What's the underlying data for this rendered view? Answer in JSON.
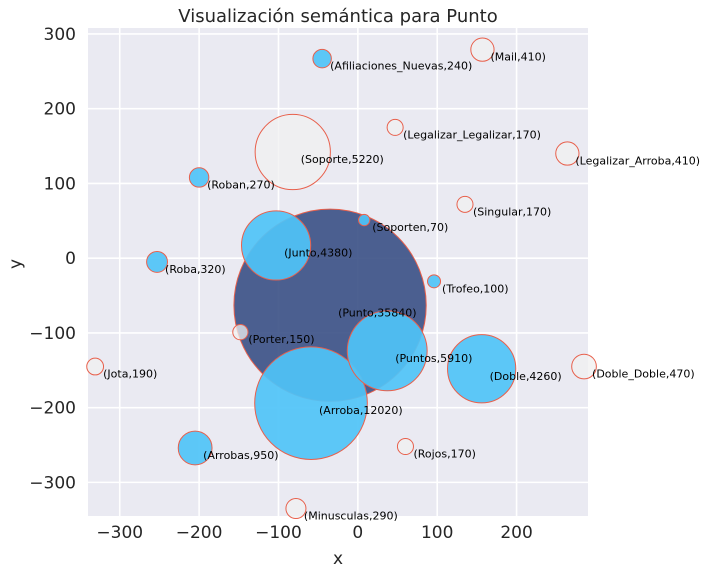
{
  "chart_data": {
    "type": "scatter",
    "title": "Visualización semántica para Punto",
    "xlabel": "x",
    "ylabel": "y",
    "xlim": [
      -340,
      290
    ],
    "ylim": [
      -345,
      308
    ],
    "xticks": [
      -300,
      -200,
      -100,
      0,
      100,
      200
    ],
    "yticks": [
      -300,
      -200,
      -100,
      0,
      100,
      200,
      300
    ],
    "grid": true,
    "colors": {
      "background": "#EAEAF2",
      "grid": "#FFFFFF",
      "edge": "#E8604C",
      "fill_blue": "#4FC3F7",
      "fill_light": "#F0F0F0",
      "fill_main": "#3A5085"
    },
    "points": [
      {
        "label": "(Punto,35840)",
        "word": "Punto",
        "x": -35,
        "y": -63,
        "weight": 35840,
        "style": "main"
      },
      {
        "label": "(Arroba,12020)",
        "word": "Arroba",
        "x": -59,
        "y": -194,
        "weight": 12020,
        "style": "blue"
      },
      {
        "label": "(Puntos,5910)",
        "word": "Puntos",
        "x": 37,
        "y": -124,
        "weight": 5910,
        "style": "blue"
      },
      {
        "label": "(Soporte,5220)",
        "word": "Soporte",
        "x": -82,
        "y": 142,
        "weight": 5220,
        "style": "light"
      },
      {
        "label": "(Junto,4380)",
        "word": "Junto",
        "x": -103,
        "y": 17,
        "weight": 4380,
        "style": "blue"
      },
      {
        "label": "(Doble,4260)",
        "word": "Doble",
        "x": 156,
        "y": -148,
        "weight": 4260,
        "style": "blue"
      },
      {
        "label": "(Arrobas,950)",
        "word": "Arrobas",
        "x": -205,
        "y": -254,
        "weight": 950,
        "style": "blue"
      },
      {
        "label": "(Doble_Doble,470)",
        "word": "Doble_Doble",
        "x": 285,
        "y": -145,
        "weight": 470,
        "style": "light"
      },
      {
        "label": "(Mail,410)",
        "word": "Mail",
        "x": 157,
        "y": 279,
        "weight": 410,
        "style": "light"
      },
      {
        "label": "(Legalizar_Arroba,410)",
        "word": "Legalizar_Arroba",
        "x": 264,
        "y": 140,
        "weight": 410,
        "style": "light"
      },
      {
        "label": "(Roba,320)",
        "word": "Roba",
        "x": -253,
        "y": -5,
        "weight": 320,
        "style": "blue"
      },
      {
        "label": "(Minusculas,290)",
        "word": "Minusculas",
        "x": -78,
        "y": -335,
        "weight": 290,
        "style": "light"
      },
      {
        "label": "(Roban,270)",
        "word": "Roban",
        "x": -200,
        "y": 108,
        "weight": 270,
        "style": "blue"
      },
      {
        "label": "(Afiliaciones_Nuevas,240)",
        "word": "Afiliaciones_Nuevas",
        "x": -45,
        "y": 267,
        "weight": 240,
        "style": "blue"
      },
      {
        "label": "(Jota,190)",
        "word": "Jota",
        "x": -331,
        "y": -145,
        "weight": 190,
        "style": "light"
      },
      {
        "label": "(Legalizar_Legalizar,170)",
        "word": "Legalizar_Legalizar",
        "x": 47,
        "y": 175,
        "weight": 170,
        "style": "light"
      },
      {
        "label": "(Singular,170)",
        "word": "Singular",
        "x": 135,
        "y": 72,
        "weight": 170,
        "style": "light"
      },
      {
        "label": "(Rojos,170)",
        "word": "Rojos",
        "x": 60,
        "y": -252,
        "weight": 170,
        "style": "light"
      },
      {
        "label": "(Porter,150)",
        "word": "Porter",
        "x": -148,
        "y": -99,
        "weight": 150,
        "style": "light"
      },
      {
        "label": "(Trofeo,100)",
        "word": "Trofeo",
        "x": 96,
        "y": -31,
        "weight": 100,
        "style": "blue"
      },
      {
        "label": "(Soporten,70)",
        "word": "Soporten",
        "x": 8,
        "y": 51,
        "weight": 70,
        "style": "blue"
      }
    ]
  }
}
